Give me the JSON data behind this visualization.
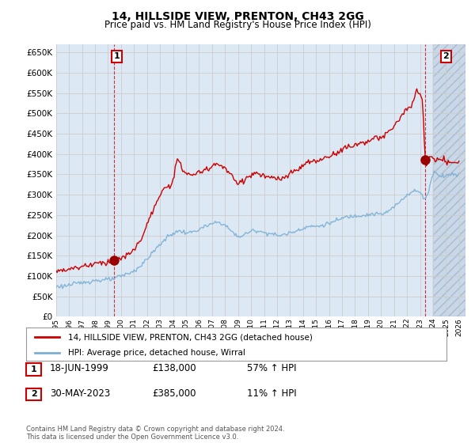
{
  "title": "14, HILLSIDE VIEW, PRENTON, CH43 2GG",
  "subtitle": "Price paid vs. HM Land Registry's House Price Index (HPI)",
  "transactions": [
    {
      "date_num": 1999.46,
      "price": 138000,
      "label": "1",
      "date_str": "18-JUN-1999",
      "pct": "57% ↑ HPI"
    },
    {
      "date_num": 2023.41,
      "price": 385000,
      "label": "2",
      "date_str": "30-MAY-2023",
      "pct": "11% ↑ HPI"
    }
  ],
  "legend_entries": [
    "14, HILLSIDE VIEW, PRENTON, CH43 2GG (detached house)",
    "HPI: Average price, detached house, Wirral"
  ],
  "footer": "Contains HM Land Registry data © Crown copyright and database right 2024.\nThis data is licensed under the Open Government Licence v3.0.",
  "hpi_color": "#7bafd4",
  "price_color": "#cc0000",
  "marker_color": "#990000",
  "grid_color": "#cccccc",
  "background_color": "#ffffff",
  "plot_bg_color": "#dce9f5",
  "future_bg_color": "#c8d8e8",
  "ylim": [
    0,
    670000
  ],
  "xlim_start": 1995.0,
  "xlim_end": 2026.5,
  "future_start": 2024.0
}
